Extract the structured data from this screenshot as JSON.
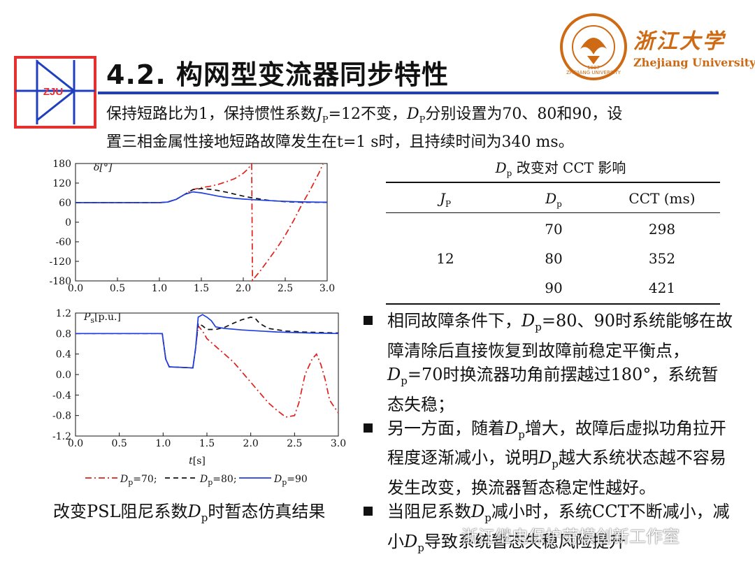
{
  "header": {
    "title": "4.2. 构网型变流器同步特性",
    "logo_text": "ZJU",
    "university_cn": "浙江大学",
    "university_en": "Zhejiang University",
    "emblem_ring_text": "ZHEJIANG UNIVERSITY",
    "emblem_year": "1897",
    "colors": {
      "title_rule": "#1f3fbf",
      "logo_red": "#e53030",
      "logo_blue": "#1f3fbf",
      "university": "#cf6a14"
    }
  },
  "intro": {
    "line1_a": "保持短路比为1，保持惯性系数",
    "j_sym": "J",
    "j_sub": "P",
    "line1_b": "=12不变，",
    "d_sym": "D",
    "d_sub": "P",
    "line1_c": "分别设置为70、80和90，设",
    "line2": "置三相金属性接地短路故障发生在t=1 s时，且持续时间为340 ms。"
  },
  "chart_data": [
    {
      "type": "line",
      "ylabel": "δ[°]",
      "xlim": [
        0.0,
        3.0
      ],
      "ylim": [
        -180,
        180
      ],
      "xticks": [
        "0.0",
        "0.5",
        "1.0",
        "1.5",
        "2.0",
        "2.5",
        "3.0"
      ],
      "yticks": [
        "180",
        "120",
        "60",
        "0",
        "-60",
        "-120",
        "-180"
      ],
      "series": [
        {
          "name": "70",
          "style": "dash-dot",
          "color": "#e0201d",
          "x": [
            0,
            1.0,
            1.1,
            1.2,
            1.3,
            1.4,
            1.5,
            1.6,
            1.7,
            1.8,
            1.9,
            2.0,
            2.05,
            2.1,
            2.11,
            2.2,
            2.3,
            2.4,
            2.5,
            2.6,
            2.7,
            2.8,
            2.9,
            2.95
          ],
          "y": [
            60,
            60,
            62,
            70,
            85,
            100,
            106,
            110,
            116,
            124,
            134,
            150,
            162,
            178,
            -178,
            -150,
            -115,
            -80,
            -40,
            5,
            55,
            100,
            150,
            178
          ]
        },
        {
          "name": "80",
          "style": "dash",
          "color": "#111111",
          "x": [
            0,
            1.0,
            1.1,
            1.2,
            1.3,
            1.4,
            1.5,
            1.6,
            1.7,
            1.8,
            1.9,
            2.0,
            2.1,
            2.2,
            2.3,
            2.4,
            2.5,
            2.6,
            2.7,
            2.8,
            2.9,
            3.0
          ],
          "y": [
            60,
            60,
            62,
            70,
            85,
            100,
            103,
            101,
            97,
            92,
            86,
            80,
            75,
            71,
            67,
            65,
            63,
            62,
            61,
            61,
            61,
            61
          ]
        },
        {
          "name": "90",
          "style": "solid",
          "color": "#1f3fe0",
          "x": [
            0,
            1.0,
            1.1,
            1.2,
            1.3,
            1.4,
            1.5,
            1.6,
            1.7,
            1.8,
            1.9,
            2.0,
            2.2,
            2.4,
            2.6,
            2.8,
            3.0
          ],
          "y": [
            60,
            60,
            62,
            70,
            85,
            93,
            90,
            85,
            80,
            76,
            73,
            71,
            68,
            65,
            63,
            62,
            61
          ]
        }
      ]
    },
    {
      "type": "line",
      "ylabel": "Ps[p.u.]",
      "xlabel": "t[s]",
      "xlim": [
        0.0,
        3.0
      ],
      "ylim": [
        -1.2,
        1.2
      ],
      "xticks": [
        "0.0",
        "0.5",
        "1.0",
        "1.5",
        "2.0",
        "2.5",
        "3.0"
      ],
      "yticks": [
        "1.2",
        "0.8",
        "0.4",
        "0.0",
        "-0.4",
        "-0.8",
        "-1.2"
      ],
      "legend": [
        "Dp=70;",
        "Dp=80;",
        "Dp=90"
      ],
      "series": [
        {
          "name": "70",
          "style": "dash-dot",
          "color": "#e0201d",
          "x": [
            0,
            0.99,
            1.03,
            1.07,
            1.34,
            1.37,
            1.4,
            1.45,
            1.5,
            1.6,
            1.7,
            1.8,
            1.9,
            2.0,
            2.1,
            2.2,
            2.3,
            2.4,
            2.5,
            2.55,
            2.62,
            2.7,
            2.75,
            2.8,
            2.85,
            2.9,
            3.0
          ],
          "y": [
            0.8,
            0.8,
            0.3,
            0.15,
            0.13,
            0.5,
            0.95,
            0.85,
            0.7,
            0.55,
            0.4,
            0.25,
            0.05,
            -0.15,
            -0.35,
            -0.55,
            -0.7,
            -0.83,
            -0.8,
            -0.55,
            0.0,
            0.3,
            0.4,
            0.2,
            -0.1,
            -0.5,
            -0.75
          ]
        },
        {
          "name": "80",
          "style": "dash",
          "color": "#111111",
          "x": [
            0,
            0.99,
            1.03,
            1.07,
            1.34,
            1.37,
            1.4,
            1.45,
            1.5,
            1.6,
            1.7,
            1.8,
            1.9,
            2.0,
            2.05,
            2.1,
            2.2,
            2.4,
            2.6,
            2.8,
            3.0
          ],
          "y": [
            0.8,
            0.8,
            0.3,
            0.15,
            0.13,
            0.5,
            1.0,
            0.95,
            0.88,
            0.88,
            0.92,
            1.0,
            1.07,
            1.12,
            1.1,
            1.0,
            0.9,
            0.85,
            0.83,
            0.82,
            0.81
          ]
        },
        {
          "name": "90",
          "style": "solid",
          "color": "#1f3fe0",
          "x": [
            0,
            0.99,
            1.03,
            1.07,
            1.34,
            1.37,
            1.4,
            1.45,
            1.5,
            1.55,
            1.6,
            1.7,
            1.9,
            2.1,
            2.3,
            2.5,
            2.7,
            3.0
          ],
          "y": [
            0.8,
            0.8,
            0.3,
            0.15,
            0.13,
            0.5,
            1.12,
            1.17,
            1.12,
            1.05,
            0.93,
            0.9,
            0.87,
            0.85,
            0.83,
            0.82,
            0.81,
            0.8
          ]
        }
      ]
    }
  ],
  "legend": {
    "d_sym": "D",
    "d_sub": "p",
    "val70": "=70;",
    "val80": "=80;",
    "val90": "=90"
  },
  "chart_label_prefix_bottom": "P",
  "chart_label_sub_bottom": "s",
  "chart_label_unit_bottom": "[p.u.]",
  "chart_label_top": "δ[°]",
  "chart_xlabel_t": "t",
  "chart_xlabel_unit": "[s]",
  "caption": {
    "a": "改变PSL阻尼系数",
    "d_sym": "D",
    "d_sub": "p",
    "b": "时暂态仿真结果"
  },
  "table": {
    "title_d": "D",
    "title_sub": "p",
    "title_rest": " 改变对 CCT 影响",
    "headers": {
      "jp": "J",
      "jp_sub": "P",
      "dp": "D",
      "dp_sub": "p",
      "cct": "CCT (ms)"
    },
    "jp_value": "12",
    "rows": [
      {
        "dp": "70",
        "cct": "298"
      },
      {
        "dp": "80",
        "cct": "352"
      },
      {
        "dp": "90",
        "cct": "421"
      }
    ]
  },
  "bullets": [
    {
      "parts": [
        "相同故障条件下，",
        "D",
        "p",
        "=80、90时系统能够在故障清除后直接恢复到故障前稳定平衡点，",
        "D",
        "p",
        "=70时换流器功角前摆越过180°，系统暂态失稳；"
      ]
    },
    {
      "parts": [
        "另一方面，随着",
        "D",
        "p",
        "增大，故障后虚拟功角拉开程度逐渐减小，说明",
        "D",
        "p",
        "越大系统状态越不容易发生改变，换流器暂态稳定性越好。"
      ]
    },
    {
      "parts": [
        "当阻尼系数",
        "D",
        "p",
        "减小时，系统CCT不断减小，减小",
        "D",
        "p",
        "导致系统暂态失稳风险提升"
      ]
    }
  ],
  "watermark": "浙江继电保护劳模创新工作室"
}
